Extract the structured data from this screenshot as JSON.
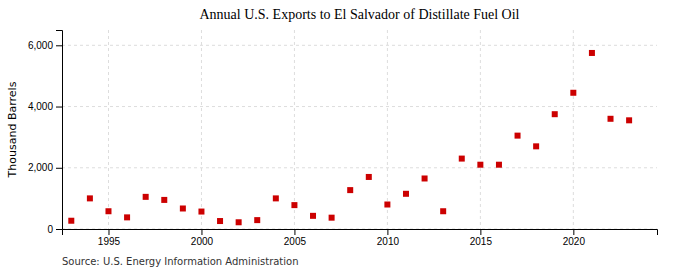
{
  "chart_data": {
    "type": "scatter",
    "title": "Annual U.S. Exports to El Salvador of Distillate Fuel Oil",
    "ylabel": "Thousand Barrels",
    "source": "Source: U.S. Energy Information Administration",
    "x": [
      1993,
      1994,
      1995,
      1996,
      1997,
      1998,
      1999,
      2000,
      2001,
      2002,
      2003,
      2004,
      2005,
      2006,
      2007,
      2008,
      2009,
      2010,
      2011,
      2012,
      2013,
      2014,
      2015,
      2016,
      2017,
      2018,
      2019,
      2020,
      2021,
      2022,
      2023
    ],
    "values": [
      270,
      1000,
      580,
      380,
      1050,
      950,
      670,
      570,
      260,
      220,
      290,
      1000,
      780,
      430,
      370,
      1270,
      1700,
      800,
      1150,
      1650,
      580,
      2300,
      2100,
      2100,
      3050,
      2700,
      3750,
      4450,
      5750,
      3600,
      3550
    ],
    "color": "#cc0000",
    "marker": "square",
    "xlim": [
      1992.5,
      2024.5
    ],
    "xticks": [
      1995,
      2000,
      2005,
      2010,
      2015,
      2020
    ],
    "ylim": [
      0,
      6500
    ],
    "yticks": [
      0,
      {
        "value": 2000,
        "label": "2,000"
      },
      {
        "value": 4000,
        "label": "4,000"
      },
      {
        "value": 6000,
        "label": "6,000"
      }
    ],
    "grid": true
  }
}
